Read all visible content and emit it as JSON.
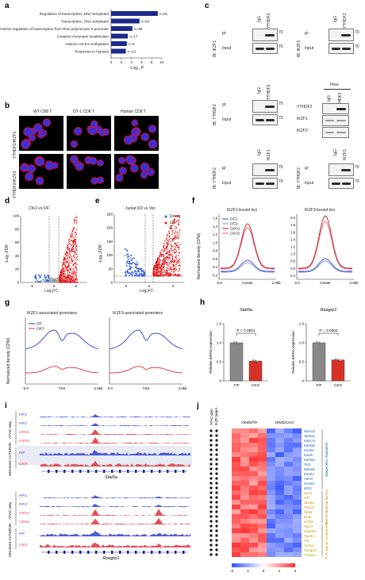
{
  "panels": [
    "a",
    "b",
    "c",
    "d",
    "e",
    "f",
    "g",
    "h",
    "i",
    "j"
  ],
  "panel_a": {
    "chart_data": {
      "type": "bar",
      "categories": [
        "Regulation of transcription, DNA-templated",
        "Transcription, DNA-templated",
        "Positive regulation of transcription from RNA polymerase II promoter",
        "Covalent chromatin modification",
        "Histone H3-K4 methylation",
        "Response to hypoxia"
      ],
      "values": [
        9.2,
        5.6,
        4.2,
        3.3,
        3.1,
        2.9
      ],
      "annotations": [
        "n=81",
        "n=64",
        "n=39",
        "n=17",
        "n=5",
        "n=13"
      ],
      "xlabel": "-Log₁₀ P",
      "xticks": [
        "0",
        "2",
        "4",
        "6",
        "8",
        "10"
      ],
      "xlim": [
        0,
        10
      ]
    }
  },
  "panel_b": {
    "columns": [
      "WT CD8 T",
      "OT-1 CD8 T",
      "Human CD8 T"
    ],
    "rows": [
      "YTHDF2/IKZF1",
      "YTHDF2/IKZF3"
    ]
  },
  "panel_c": {
    "ip": "IP",
    "input": "Input",
    "igg": "IgG",
    "ythdf2": "YTHDF2",
    "ikzf1": "IKZF1",
    "ikzf3": "IKZF3",
    "ib1": "IB: IKZF1",
    "ib2": "IB: IKZF3",
    "ib3": "IB: YTHDF2",
    "ib4": "IB: YTHDF2",
    "ib5": "IB: YTHDF2",
    "mw": "70",
    "flow": "Flow",
    "flow_rows": [
      "YTHDF2",
      "IKZF1",
      "IKZF3"
    ]
  },
  "panel_d": {
    "title": "CKO vs F/F",
    "ylabel": "-Log₁₀FDR",
    "xlabel": "Log₂FC",
    "yticks": [
      "0",
      "20",
      "40",
      "60",
      "80",
      "100"
    ],
    "xticks": [
      "-5",
      "0",
      "5"
    ]
  },
  "panel_e": {
    "title": "Jurkat KD vs Vec",
    "ylabel": "-Log₁₀FDR",
    "xlabel": "Log₂FC",
    "yticks": [
      "0",
      "50",
      "100",
      "150",
      "200",
      "250"
    ],
    "xticks": [
      "-4",
      "0",
      "4"
    ],
    "legend": [
      "Down",
      "Up"
    ]
  },
  "panel_f": {
    "titles": [
      "IKZF1-bound loci",
      "IKZF3-bound loci"
    ],
    "ylabel": "Normalized density (CPM)",
    "legend": [
      "F/F1",
      "F/F2",
      "CKO1",
      "CKO2"
    ],
    "yticks_left": [
      "0.2",
      "0.4",
      "0.6",
      "0.8",
      "1.0",
      "1.2",
      "1.4",
      "1.6"
    ],
    "yticks_right": [
      "0.4",
      "0.6",
      "0.8",
      "1.0",
      "1.2",
      "1.4",
      "1.6",
      "1.8",
      "2.0"
    ],
    "xticks": [
      "-2.0",
      "Center",
      "2.0kb"
    ]
  },
  "panel_g": {
    "titles": [
      "IKZF1-associated promoters",
      "IKZF3-associated promoters"
    ],
    "ylabel": "Normalized density (CPM)",
    "legend": [
      "F/F",
      "CKO"
    ],
    "xticks": [
      "-2.0",
      "TSS",
      "2.0kb"
    ]
  },
  "panel_h": {
    "chart_data": [
      {
        "type": "bar",
        "title": "Stat5a",
        "categories": [
          "F/F",
          "CKO"
        ],
        "values": [
          1.0,
          0.52
        ],
        "ylabel": "Relative mRNA expression",
        "p": "P < 0.0001",
        "yticks": [
          "0",
          "0.5",
          "1.0",
          "1.5"
        ],
        "ylim": [
          0,
          1.5
        ]
      },
      {
        "type": "bar",
        "title": "Rasgrp1",
        "categories": [
          "F/F",
          "CKO"
        ],
        "values": [
          1.0,
          0.55
        ],
        "ylabel": "Relative mRNA expression",
        "p": "P = 0.0002",
        "yticks": [
          "0",
          "0.5",
          "1.0",
          "1.5"
        ],
        "ylim": [
          0,
          1.5
        ]
      }
    ],
    "colors": {
      "ff": "#888888",
      "cko": "#d73027"
    }
  },
  "panel_i": {
    "track_names": [
      "F/F1",
      "F/F2",
      "CKO1",
      "CKO2",
      "F/F",
      "CKO"
    ],
    "assays": [
      "ATAC-seq",
      "H3K4me3 CUT&RUN"
    ],
    "genes": [
      "Stat5a",
      "Rasgrp1"
    ]
  },
  "panel_j": {
    "headers": [
      "ATAC-gain",
      "IKZF target"
    ],
    "groups": [
      "Ythdf2F/F",
      "Ythdf2CKO"
    ],
    "genes": [
      "Kdm2a",
      "Setd1a",
      "Kdm7a",
      "Kdm5b",
      "Kmt2e",
      "Kat2b",
      "Kdm5a",
      "Tet2",
      "Kdm6b",
      "Kmt2a",
      "Ash1l",
      "Kmt2d",
      "Ezh1",
      "Sox4",
      "Klf7",
      "Stat5a",
      "Foxo3",
      "Nfat5",
      "Il12b",
      "Ctf2/6",
      "Ptpn7",
      "Map3k8",
      "Ppp4r1",
      "Irf4",
      "Hdac2",
      "Rasgrp1",
      "Tnfaip3"
    ],
    "categories": [
      {
        "label": "Epigenetic regulators",
        "color": "#1f5fa8"
      },
      {
        "label": "Transcriptional factors",
        "color": "#d98a1e"
      },
      {
        "label": "TCR signal components",
        "color": "#c5a514"
      }
    ],
    "scale": [
      "-2",
      "-1",
      "0",
      "1",
      "2"
    ]
  }
}
